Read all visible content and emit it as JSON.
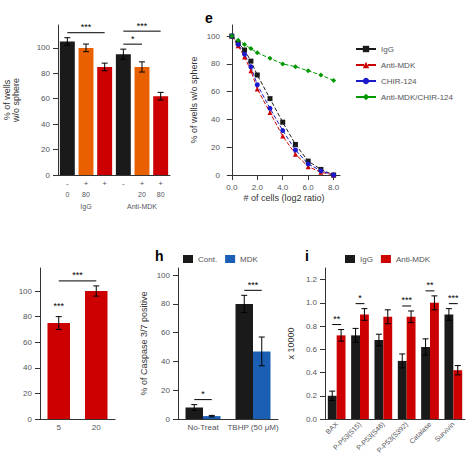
{
  "chart_data": [
    {
      "type": "bar",
      "categories": [
        "-",
        "+",
        "+",
        "-",
        "+",
        "+"
      ],
      "dose_labels": [
        "0",
        "80",
        null,
        null,
        "20",
        "80"
      ],
      "group_labels": [
        "IgG",
        "Anti-MDK"
      ],
      "values": [
        105,
        100,
        85,
        95,
        85,
        62
      ],
      "errors": [
        3,
        3,
        3,
        4,
        4,
        3
      ],
      "colors": [
        "#1a1a1a",
        "#e86000",
        "#cc0000",
        "#1a1a1a",
        "#e86000",
        "#cc0000"
      ],
      "ylabel": "% of wells\nw/o sphere",
      "ylim": [
        0,
        118
      ],
      "yticks": [
        0,
        20,
        40,
        60,
        80,
        100
      ],
      "grid": false,
      "annotations": [
        {
          "text": "***",
          "between": [
            0,
            2
          ]
        },
        {
          "text": "***",
          "between": [
            3,
            5
          ]
        },
        {
          "text": "*",
          "between": [
            3,
            4
          ]
        }
      ]
    },
    {
      "type": "line",
      "title": "e",
      "x": [
        0.0,
        0.5,
        1.0,
        1.5,
        2.0,
        3.0,
        4.0,
        5.0,
        6.0,
        7.0,
        8.0
      ],
      "series": [
        {
          "name": "IgG",
          "color": "#1a1a1a",
          "marker": "square",
          "line_style": "dashed",
          "values": [
            100,
            95,
            90,
            82,
            72,
            55,
            38,
            22,
            10,
            4,
            0
          ]
        },
        {
          "name": "Anti-MDK",
          "color": "#cc0000",
          "marker": "triangle",
          "line_style": "dashed",
          "values": [
            100,
            93,
            85,
            75,
            62,
            45,
            28,
            15,
            6,
            2,
            0
          ]
        },
        {
          "name": "CHIR-124",
          "color": "#1a1acc",
          "marker": "circle",
          "line_style": "dashed",
          "values": [
            100,
            94,
            87,
            78,
            65,
            48,
            32,
            18,
            8,
            3,
            0
          ]
        },
        {
          "name": "Anti-MDK/CHIR-124",
          "color": "#009900",
          "marker": "diamond",
          "line_style": "dashed",
          "values": [
            100,
            97,
            94,
            91,
            88,
            84,
            80,
            78,
            75,
            72,
            68
          ]
        }
      ],
      "xlabel": "# of cells (log2 ratio)",
      "ylabel": "% of wells w/o sphere",
      "xlim": [
        -0.3,
        8.5
      ],
      "xticks": [
        {
          "value": 0,
          "label": "0.0"
        },
        {
          "value": 2,
          "label": "2.0"
        },
        {
          "value": 4,
          "label": "4.0"
        },
        {
          "value": 6,
          "label": "6.0"
        },
        {
          "value": 8,
          "label": "8.0"
        }
      ],
      "ylim": [
        0,
        108
      ],
      "yticks": [
        0,
        20,
        40,
        60,
        80,
        100
      ],
      "grid": false,
      "legend": "right"
    },
    {
      "type": "bar",
      "categories": [
        "5",
        "20"
      ],
      "values": [
        75,
        100
      ],
      "errors": [
        5,
        4
      ],
      "color": "#cc0000",
      "ylim": [
        0,
        118
      ],
      "yticks": [
        0,
        20,
        40,
        60,
        80,
        100
      ],
      "grid": false,
      "annotations": [
        {
          "text": "***",
          "between": [
            0,
            1
          ]
        },
        {
          "text": "***",
          "bar": 0
        }
      ]
    },
    {
      "type": "bar",
      "title": "h",
      "categories": [
        "No-Treat",
        "TBHP (50 μM)"
      ],
      "series": [
        {
          "name": "Cont.",
          "color": "#1a1a1a",
          "values": [
            8,
            80
          ],
          "errors": [
            2,
            6
          ]
        },
        {
          "name": "MDK",
          "color": "#1a5fb4",
          "values": [
            2,
            47
          ],
          "errors": [
            0.5,
            10
          ]
        }
      ],
      "ylabel": "% of Caspase 3/7 positive",
      "ylim": [
        0,
        105
      ],
      "yticks": [
        0,
        20,
        40,
        60,
        80,
        100
      ],
      "grid": false,
      "legend": "top",
      "annotations": [
        {
          "text": "*",
          "category": 0
        },
        {
          "text": "***",
          "category": 1
        }
      ]
    },
    {
      "type": "bar",
      "title": "i",
      "categories": [
        "BAX",
        "P-P53(S15)",
        "P-P53(S46)",
        "P-P53(S392)",
        "Catalase",
        "Survivin"
      ],
      "series": [
        {
          "name": "IgG",
          "color": "#1a1a1a",
          "values": [
            0.2,
            0.72,
            0.68,
            0.5,
            0.62,
            0.9
          ],
          "errors": [
            0.04,
            0.06,
            0.05,
            0.06,
            0.07,
            0.05
          ]
        },
        {
          "name": "Anti-MDK",
          "color": "#cc0000",
          "values": [
            0.72,
            0.9,
            0.88,
            0.88,
            1.0,
            0.42
          ],
          "errors": [
            0.05,
            0.05,
            0.06,
            0.05,
            0.06,
            0.04
          ]
        }
      ],
      "ylabel": "x 10000",
      "ylim": [
        0,
        1.3
      ],
      "yticks": [
        {
          "value": 0,
          "label": "0.0"
        },
        0.2,
        0.4,
        0.6,
        0.8,
        {
          "value": 1,
          "label": "1.0"
        },
        1.2
      ],
      "grid": false,
      "legend": "top",
      "annotations": [
        {
          "text": "**",
          "category": 0
        },
        {
          "text": "*",
          "category": 1
        },
        {
          "text": "***",
          "category": 3
        },
        {
          "text": "**",
          "category": 4
        },
        {
          "text": "***",
          "category": 5
        }
      ]
    }
  ]
}
